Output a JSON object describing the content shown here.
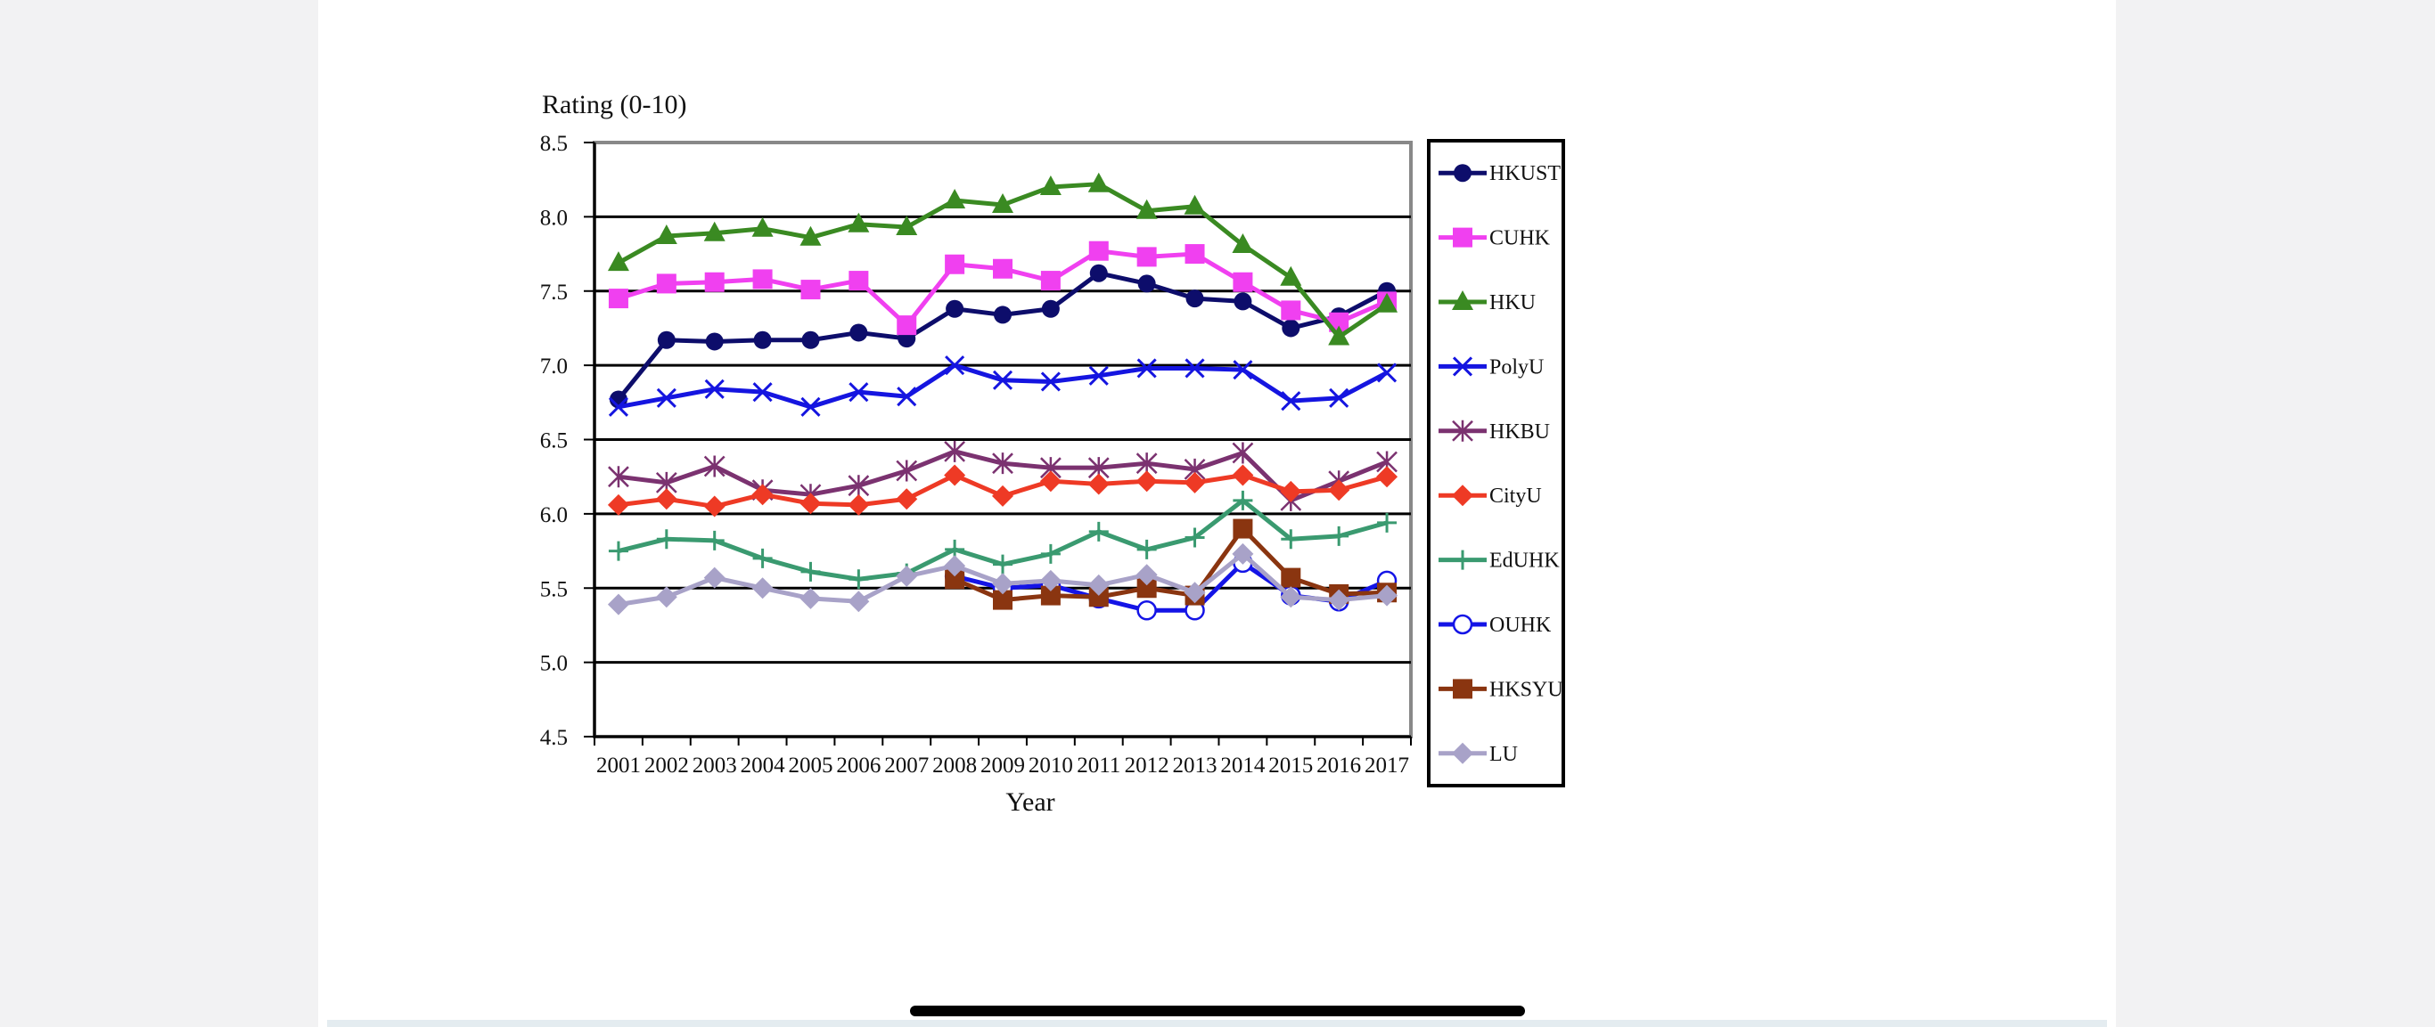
{
  "chart_data": {
    "type": "line",
    "ylabel": "Rating (0-10)",
    "xlabel": "Year",
    "ylim": [
      4.5,
      8.5
    ],
    "yticks": [
      "8.5",
      "8.0",
      "7.5",
      "7.0",
      "6.5",
      "6.0",
      "5.5",
      "5.0",
      "4.5"
    ],
    "ytick_values": [
      8.5,
      8.0,
      7.5,
      7.0,
      6.5,
      6.0,
      5.5,
      5.0,
      4.5
    ],
    "categories": [
      "2001",
      "2002",
      "2003",
      "2004",
      "2005",
      "2006",
      "2007",
      "2008",
      "2009",
      "2010",
      "2011",
      "2012",
      "2013",
      "2014",
      "2015",
      "2016",
      "2017"
    ],
    "grid": true,
    "legend_position": "right",
    "series": [
      {
        "name": "HKUST",
        "color": "#0d0d6b",
        "marker": "circle",
        "values": [
          6.77,
          7.17,
          7.16,
          7.17,
          7.17,
          7.22,
          7.18,
          7.38,
          7.34,
          7.38,
          7.62,
          7.55,
          7.45,
          7.43,
          7.25,
          7.33,
          7.5
        ]
      },
      {
        "name": "CUHK",
        "color": "#f040f0",
        "marker": "square",
        "values": [
          7.45,
          7.55,
          7.56,
          7.58,
          7.51,
          7.57,
          7.27,
          7.68,
          7.65,
          7.57,
          7.77,
          7.73,
          7.75,
          7.56,
          7.37,
          7.29,
          7.43
        ]
      },
      {
        "name": "HKU",
        "color": "#3a8a22",
        "marker": "triangle",
        "values": [
          7.69,
          7.87,
          7.89,
          7.92,
          7.86,
          7.95,
          7.93,
          8.11,
          8.08,
          8.2,
          8.22,
          8.04,
          8.07,
          7.81,
          7.59,
          7.19,
          7.41
        ]
      },
      {
        "name": "PolyU",
        "color": "#1515e0",
        "marker": "x",
        "values": [
          6.72,
          6.78,
          6.84,
          6.82,
          6.72,
          6.82,
          6.79,
          7.0,
          6.9,
          6.89,
          6.93,
          6.98,
          6.98,
          6.97,
          6.76,
          6.78,
          6.95
        ]
      },
      {
        "name": "HKBU",
        "color": "#7b3270",
        "marker": "star",
        "values": [
          6.25,
          6.21,
          6.32,
          6.16,
          6.13,
          6.19,
          6.29,
          6.42,
          6.34,
          6.31,
          6.31,
          6.34,
          6.3,
          6.41,
          6.09,
          6.22,
          6.35
        ]
      },
      {
        "name": "CityU",
        "color": "#ee3a25",
        "marker": "diamond",
        "values": [
          6.06,
          6.1,
          6.05,
          6.13,
          6.07,
          6.06,
          6.1,
          6.26,
          6.12,
          6.22,
          6.2,
          6.22,
          6.21,
          6.26,
          6.15,
          6.16,
          6.25
        ]
      },
      {
        "name": "EdUHK",
        "color": "#3a9a70",
        "marker": "plus",
        "values": [
          5.75,
          5.83,
          5.82,
          5.7,
          5.61,
          5.56,
          5.6,
          5.76,
          5.66,
          5.73,
          5.88,
          5.76,
          5.84,
          6.09,
          5.83,
          5.85,
          5.94
        ]
      },
      {
        "name": "OUHK",
        "color": "#1414e6",
        "marker": "circle-open",
        "values": [
          null,
          null,
          null,
          null,
          null,
          null,
          null,
          5.58,
          5.5,
          5.52,
          5.43,
          5.35,
          5.35,
          5.67,
          5.45,
          5.41,
          5.55
        ]
      },
      {
        "name": "HKSYU",
        "color": "#8a3510",
        "marker": "square",
        "values": [
          null,
          null,
          null,
          null,
          null,
          null,
          null,
          5.56,
          5.42,
          5.45,
          5.44,
          5.5,
          5.45,
          5.9,
          5.57,
          5.46,
          5.47
        ]
      },
      {
        "name": "LU",
        "color": "#a8a2c8",
        "marker": "diamond",
        "values": [
          5.39,
          5.44,
          5.57,
          5.5,
          5.43,
          5.41,
          5.58,
          5.65,
          5.53,
          5.55,
          5.52,
          5.59,
          5.47,
          5.73,
          5.44,
          5.42,
          5.45
        ]
      }
    ]
  }
}
